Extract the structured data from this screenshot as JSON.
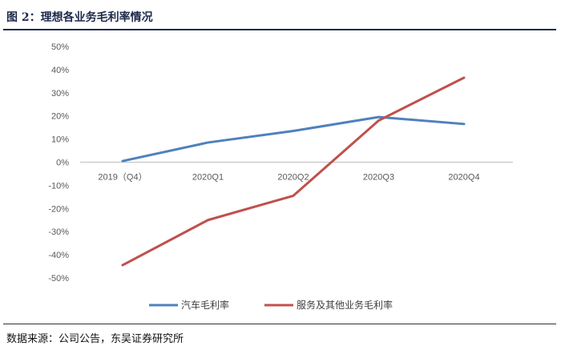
{
  "figure": {
    "title": "图 2：理想各业务毛利率情况",
    "source": "数据来源：公司公告，东吴证券研究所"
  },
  "chart_data": {
    "type": "line",
    "title": "",
    "xlabel": "",
    "ylabel": "",
    "categories": [
      "2019（Q4）",
      "2020Q1",
      "2020Q2",
      "2020Q3",
      "2020Q4"
    ],
    "yticks": [
      "50%",
      "40%",
      "30%",
      "20%",
      "10%",
      "0%",
      "-10%",
      "-20%",
      "-30%",
      "-40%",
      "-50%"
    ],
    "ylim": [
      -50,
      50
    ],
    "grid": false,
    "legend_position": "bottom",
    "series": [
      {
        "name": "汽车毛利率",
        "color": "#4f81bd",
        "values": [
          0.5,
          8.5,
          13.5,
          19.5,
          16.5
        ]
      },
      {
        "name": "服务及其他业务毛利率",
        "color": "#c0504d",
        "values": [
          -44.5,
          -25,
          -14.5,
          18,
          36.5
        ]
      }
    ]
  }
}
